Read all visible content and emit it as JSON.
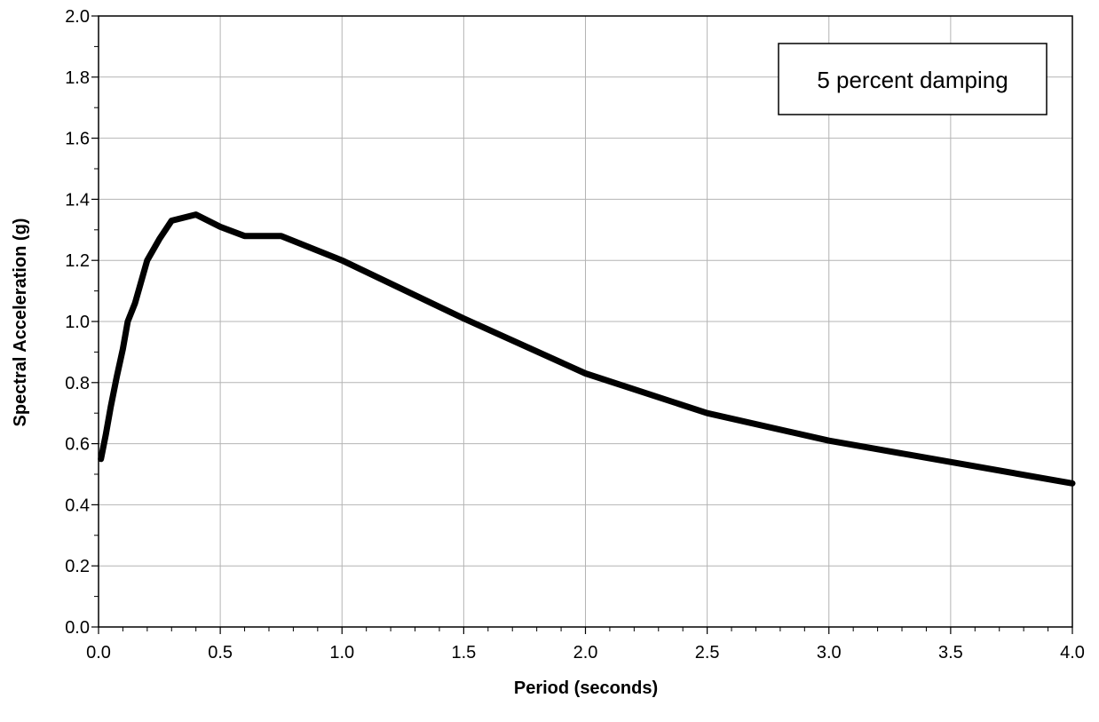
{
  "chart_data": {
    "type": "line",
    "title": "",
    "xlabel": "Period (seconds)",
    "ylabel": "Spectral Acceleration (g)",
    "xlim": [
      0,
      4
    ],
    "ylim": [
      0,
      2
    ],
    "x_major_step": 0.5,
    "y_major_step": 0.2,
    "x_ticks": [
      "0.0",
      "0.5",
      "1.0",
      "1.5",
      "2.0",
      "2.5",
      "3.0",
      "3.5",
      "4.0"
    ],
    "y_ticks": [
      "0.0",
      "0.2",
      "0.4",
      "0.6",
      "0.8",
      "1.0",
      "1.2",
      "1.4",
      "1.6",
      "1.8",
      "2.0"
    ],
    "grid": true,
    "legend": "none",
    "annotation": "5 percent damping",
    "annotation_position": "top-right",
    "line_color": "#000000",
    "series": [
      {
        "x": [
          0.01,
          0.03,
          0.05,
          0.075,
          0.1,
          0.12,
          0.15,
          0.2,
          0.25,
          0.3,
          0.4,
          0.5,
          0.6,
          0.75,
          1.0,
          1.5,
          2.0,
          2.5,
          3.0,
          4.0
        ],
        "y": [
          0.55,
          0.63,
          0.72,
          0.82,
          0.91,
          1.0,
          1.06,
          1.2,
          1.27,
          1.33,
          1.35,
          1.31,
          1.28,
          1.28,
          1.2,
          1.01,
          0.83,
          0.7,
          0.61,
          0.47
        ]
      }
    ]
  }
}
